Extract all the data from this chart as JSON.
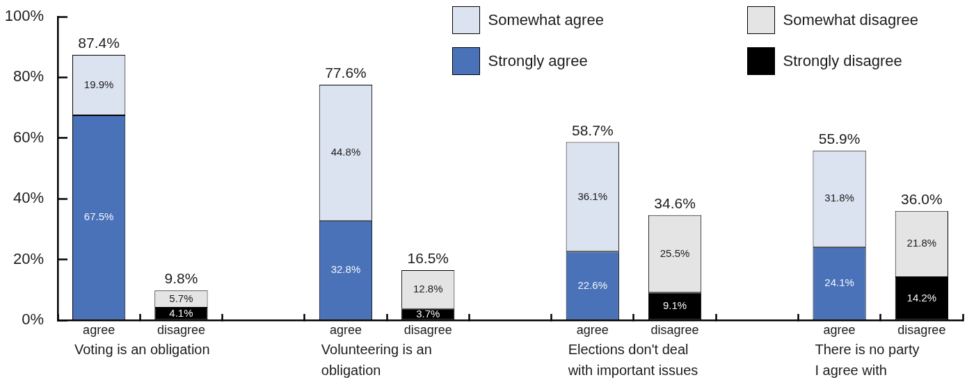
{
  "chart_data": {
    "type": "bar",
    "stacked": true,
    "categories": [
      "agree",
      "disagree",
      null,
      "agree",
      "disagree",
      null,
      "agree",
      "disagree",
      null,
      "agree",
      "disagree"
    ],
    "series": [
      {
        "name": "Strongly agree",
        "color": "#4a72b8",
        "values": [
          67.5,
          null,
          null,
          32.8,
          null,
          null,
          22.6,
          null,
          null,
          24.1,
          null
        ],
        "value_labels": [
          "67.5%",
          null,
          null,
          "32.8%",
          null,
          null,
          "22.6%",
          null,
          null,
          "24.1%",
          null
        ]
      },
      {
        "name": "Somewhat agree",
        "color": "#dce3f0",
        "values": [
          19.9,
          null,
          null,
          44.8,
          null,
          null,
          36.1,
          null,
          null,
          31.8,
          null
        ],
        "value_labels": [
          "19.9%",
          null,
          null,
          "44.8%",
          null,
          null,
          "36.1%",
          null,
          null,
          "31.8%",
          null
        ]
      },
      {
        "name": "Strongly disagree",
        "color": "#000000",
        "values": [
          null,
          4.1,
          null,
          null,
          3.7,
          null,
          null,
          9.1,
          null,
          null,
          14.2
        ],
        "value_labels": [
          null,
          "4.1%",
          null,
          null,
          "3.7%",
          null,
          null,
          "9.1%",
          null,
          null,
          "14.2%"
        ]
      },
      {
        "name": "Somewhat disagree",
        "color": "#e4e4e4",
        "values": [
          null,
          5.7,
          null,
          null,
          12.8,
          null,
          null,
          25.5,
          null,
          null,
          21.8
        ],
        "value_labels": [
          null,
          "5.7%",
          null,
          null,
          "12.8%",
          null,
          null,
          "25.5%",
          null,
          null,
          "21.8%"
        ]
      }
    ],
    "totals": [
      "87.4%",
      "9.8%",
      null,
      "77.6%",
      "16.5%",
      null,
      "58.7%",
      "34.6%",
      null,
      "55.9%",
      "36.0%"
    ],
    "ylim": [
      0,
      100
    ],
    "yticks": [
      {
        "value": 0,
        "label": "0%"
      },
      {
        "value": 20,
        "label": "20%"
      },
      {
        "value": 40,
        "label": "40%"
      },
      {
        "value": 60,
        "label": "60%"
      },
      {
        "value": 80,
        "label": "80%"
      },
      {
        "value": 100,
        "label": "100%"
      }
    ],
    "legend": "top right",
    "annotations": [
      "Voting is an obligation",
      "Volunteering is an\nobligation",
      "Elections don't deal\nwith important issues",
      "There is no party\nI agree with"
    ]
  }
}
